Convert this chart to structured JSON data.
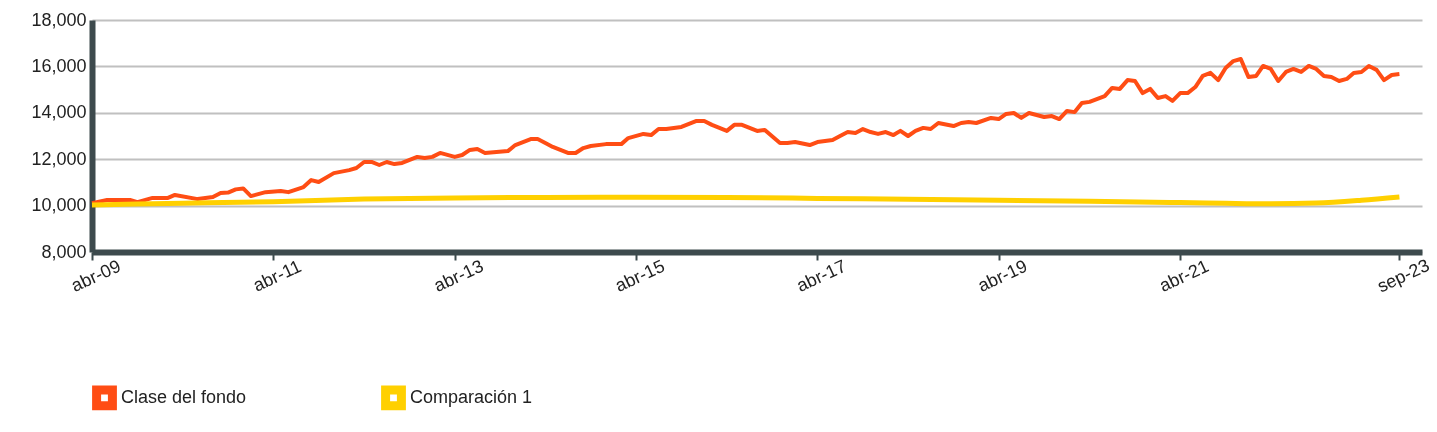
{
  "chart_data": {
    "type": "line",
    "xlim": [
      "2009-04",
      "2023-12"
    ],
    "xticks": [
      {
        "value": "2009-04",
        "label": "abr-09"
      },
      {
        "value": "2011-04",
        "label": "abr-11"
      },
      {
        "value": "2013-04",
        "label": "abr-13"
      },
      {
        "value": "2015-04",
        "label": "abr-15"
      },
      {
        "value": "2017-04",
        "label": "abr-17"
      },
      {
        "value": "2019-04",
        "label": "abr-19"
      },
      {
        "value": "2021-04",
        "label": "abr-21"
      },
      {
        "value": "2023-09",
        "label": "sep-23"
      }
    ],
    "ylim": [
      8000,
      18000
    ],
    "yticks": [
      {
        "value": 8000,
        "label": "8,000"
      },
      {
        "value": 10000,
        "label": "10,000"
      },
      {
        "value": 12000,
        "label": "12,000"
      },
      {
        "value": 14000,
        "label": "14,000"
      },
      {
        "value": 16000,
        "label": "16,000"
      },
      {
        "value": 18000,
        "label": "18,000"
      }
    ],
    "grid": "y",
    "legend": "bottom left",
    "marker": "none",
    "line_style": "solid",
    "series": [
      {
        "name": "Clase del fondo",
        "color": "#ff4d14",
        "x": [
          "2009-04",
          "2009-06",
          "2009-09",
          "2009-10",
          "2009-12",
          "2010-02",
          "2010-03",
          "2010-06",
          "2010-08",
          "2010-09",
          "2010-10",
          "2010-11",
          "2010-12",
          "2011-01",
          "2011-03",
          "2011-05",
          "2011-06",
          "2011-08",
          "2011-09",
          "2011-10",
          "2011-12",
          "2012-02",
          "2012-03",
          "2012-04",
          "2012-05",
          "2012-06",
          "2012-07",
          "2012-08",
          "2012-09",
          "2012-11",
          "2012-12",
          "2013-01",
          "2013-02",
          "2013-04",
          "2013-05",
          "2013-06",
          "2013-07",
          "2013-08",
          "2013-11",
          "2013-12",
          "2014-02",
          "2014-03",
          "2014-04",
          "2014-05",
          "2014-07",
          "2014-08",
          "2014-09",
          "2014-10",
          "2014-12",
          "2015-02",
          "2015-03",
          "2015-05",
          "2015-06",
          "2015-07",
          "2015-08",
          "2015-10",
          "2015-12",
          "2016-01",
          "2016-02",
          "2016-04",
          "2016-05",
          "2016-06",
          "2016-08",
          "2016-09",
          "2016-11",
          "2016-12",
          "2017-01",
          "2017-03",
          "2017-04",
          "2017-06",
          "2017-07",
          "2017-08",
          "2017-09",
          "2017-10",
          "2017-11",
          "2017-12",
          "2018-01",
          "2018-02",
          "2018-03",
          "2018-04",
          "2018-05",
          "2018-06",
          "2018-07",
          "2018-08",
          "2018-10",
          "2018-11",
          "2018-12",
          "2019-01",
          "2019-03",
          "2019-04",
          "2019-05",
          "2019-06",
          "2019-07",
          "2019-08",
          "2019-10",
          "2019-11",
          "2019-12",
          "2020-01",
          "2020-02",
          "2020-03",
          "2020-04",
          "2020-06",
          "2020-07",
          "2020-08",
          "2020-09",
          "2020-10",
          "2020-11",
          "2020-12",
          "2021-01",
          "2021-02",
          "2021-03",
          "2021-04",
          "2021-05",
          "2021-06",
          "2021-07",
          "2021-08",
          "2021-09",
          "2021-10",
          "2021-11",
          "2021-12",
          "2022-01",
          "2022-02",
          "2022-03",
          "2022-04",
          "2022-05",
          "2022-06",
          "2022-07",
          "2022-08",
          "2022-09",
          "2022-10",
          "2022-11",
          "2022-12",
          "2023-01",
          "2023-02",
          "2023-03",
          "2023-04",
          "2023-05",
          "2023-06",
          "2023-07",
          "2023-08",
          "2023-09"
        ],
        "values": [
          10100,
          10240,
          10240,
          10150,
          10330,
          10330,
          10460,
          10280,
          10370,
          10540,
          10560,
          10700,
          10740,
          10410,
          10580,
          10630,
          10580,
          10800,
          11100,
          11020,
          11400,
          11530,
          11620,
          11880,
          11880,
          11750,
          11880,
          11790,
          11840,
          12100,
          12050,
          12100,
          12270,
          12100,
          12180,
          12400,
          12440,
          12270,
          12350,
          12610,
          12870,
          12870,
          12700,
          12530,
          12270,
          12270,
          12480,
          12570,
          12650,
          12650,
          12910,
          13090,
          13040,
          13300,
          13300,
          13390,
          13650,
          13650,
          13480,
          13220,
          13480,
          13480,
          13220,
          13260,
          12700,
          12700,
          12740,
          12610,
          12740,
          12830,
          13000,
          13170,
          13130,
          13300,
          13170,
          13090,
          13170,
          13040,
          13220,
          13000,
          13220,
          13350,
          13300,
          13560,
          13430,
          13560,
          13600,
          13560,
          13780,
          13730,
          13950,
          13990,
          13780,
          13990,
          13820,
          13860,
          13730,
          14080,
          14030,
          14420,
          14470,
          14720,
          15070,
          15030,
          15410,
          15370,
          14850,
          15030,
          14640,
          14720,
          14510,
          14850,
          14850,
          15110,
          15590,
          15720,
          15410,
          15930,
          16230,
          16320,
          15540,
          15590,
          16020,
          15890,
          15370,
          15760,
          15890,
          15760,
          16020,
          15890,
          15590,
          15540,
          15370,
          15460,
          15720,
          15760,
          16020,
          15850,
          15410,
          15630,
          15670
        ]
      },
      {
        "name": "Comparación 1",
        "color": "#ffd000",
        "x": [
          "2009-04",
          "2010-04",
          "2011-04",
          "2012-04",
          "2013-04",
          "2014-04",
          "2015-04",
          "2016-04",
          "2017-04",
          "2018-04",
          "2019-04",
          "2020-04",
          "2021-04",
          "2021-10",
          "2022-04",
          "2022-10",
          "2023-04",
          "2023-09"
        ],
        "values": [
          10030,
          10100,
          10170,
          10280,
          10330,
          10350,
          10360,
          10350,
          10310,
          10270,
          10230,
          10190,
          10130,
          10100,
          10080,
          10110,
          10230,
          10370
        ]
      }
    ]
  }
}
